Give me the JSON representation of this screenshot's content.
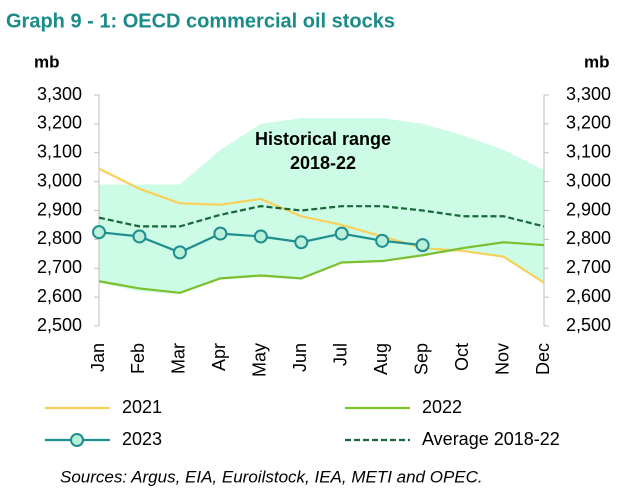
{
  "chart_data": {
    "type": "line",
    "title": "Graph 9 - 1: OECD commercial oil stocks",
    "y_label": "mb",
    "y2_label": "mb",
    "annotation": "Historical range",
    "annotation_line2": "2018-22",
    "source": "Sources: Argus, EIA, Euroilstock, IEA, METI and OPEC.",
    "categories": [
      "Jan",
      "Feb",
      "Mar",
      "Apr",
      "May",
      "Jun",
      "Jul",
      "Aug",
      "Sep",
      "Oct",
      "Nov",
      "Dec"
    ],
    "ylim": [
      2500,
      3300
    ],
    "y2lim": [
      2500,
      3300
    ],
    "yticks": [
      {
        "value": 2500,
        "label": "2,500"
      },
      {
        "value": 2600,
        "label": "2,600"
      },
      {
        "value": 2700,
        "label": "2,700"
      },
      {
        "value": 2800,
        "label": "2,800"
      },
      {
        "value": 2900,
        "label": "2,900"
      },
      {
        "value": 3000,
        "label": "3,000"
      },
      {
        "value": 3100,
        "label": "3,100"
      },
      {
        "value": 3200,
        "label": "3,200"
      },
      {
        "value": 3300,
        "label": "3,300"
      }
    ],
    "y2ticks": [
      {
        "value": 2500,
        "label": "2,500"
      },
      {
        "value": 2600,
        "label": "2,600"
      },
      {
        "value": 2700,
        "label": "2,700"
      },
      {
        "value": 2800,
        "label": "2,800"
      },
      {
        "value": 2900,
        "label": "2,900"
      },
      {
        "value": 3000,
        "label": "3,000"
      },
      {
        "value": 3100,
        "label": "3,100"
      },
      {
        "value": 3200,
        "label": "3,200"
      },
      {
        "value": 3300,
        "label": "3,300"
      }
    ],
    "range": {
      "color": "#ccfbe6",
      "upper": [
        2990,
        2990,
        2990,
        3110,
        3200,
        3220,
        3220,
        3220,
        3200,
        3160,
        3110,
        3040
      ],
      "lower": [
        2650,
        2620,
        2610,
        2660,
        2670,
        2660,
        2720,
        2720,
        2745,
        2760,
        2740,
        2645
      ]
    },
    "series": [
      {
        "name": "2021",
        "color": "#f7d15a",
        "style": "solid",
        "markers": false,
        "values": [
          3045,
          2975,
          2925,
          2920,
          2940,
          2880,
          2850,
          2810,
          2770,
          2760,
          2740,
          2650
        ]
      },
      {
        "name": "2022",
        "color": "#7dbf2f",
        "style": "solid",
        "markers": false,
        "values": [
          2655,
          2630,
          2615,
          2665,
          2675,
          2665,
          2720,
          2725,
          2745,
          2770,
          2790,
          2780
        ]
      },
      {
        "name": "2023",
        "color": "#1f8e8e",
        "style": "solid",
        "markers": true,
        "values": [
          2825,
          2810,
          2755,
          2820,
          2810,
          2790,
          2820,
          2795,
          2780,
          null,
          null,
          null
        ]
      },
      {
        "name": "Average 2018-22",
        "color": "#17673a",
        "style": "dashed",
        "markers": false,
        "values": [
          2875,
          2845,
          2845,
          2885,
          2915,
          2900,
          2915,
          2915,
          2900,
          2880,
          2880,
          2845
        ]
      }
    ]
  }
}
